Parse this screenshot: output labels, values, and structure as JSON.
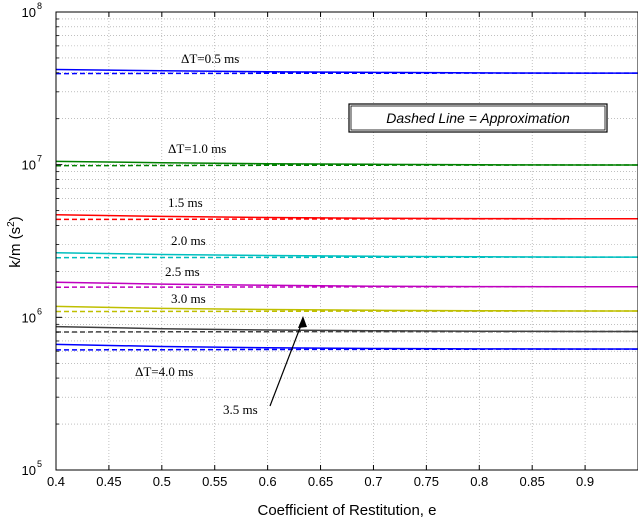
{
  "chart_data": {
    "type": "line",
    "xlabel": "Coefficient of Restitution, e",
    "ylabel": "k/m (s",
    "ylabel_exp": "2",
    "ylabel_close": ")",
    "yscale": "log",
    "xlim": [
      0.4,
      0.95
    ],
    "ylim": [
      100000,
      100000000
    ],
    "grid": true,
    "x_ticks": [
      "0.4",
      "0.45",
      "0.5",
      "0.55",
      "0.6",
      "0.65",
      "0.7",
      "0.75",
      "0.8",
      "0.85",
      "0.9"
    ],
    "x_tick_values": [
      0.4,
      0.45,
      0.5,
      0.55,
      0.6,
      0.65,
      0.7,
      0.75,
      0.8,
      0.85,
      0.9
    ],
    "y_ticks": [
      {
        "value": 100000,
        "base": "10",
        "exp": "5"
      },
      {
        "value": 1000000,
        "base": "10",
        "exp": "6"
      },
      {
        "value": 10000000,
        "base": "10",
        "exp": "7"
      },
      {
        "value": 100000000,
        "base": "10",
        "exp": "8"
      }
    ],
    "series": [
      {
        "label": "ΔT=0.5 ms",
        "color": "#0000ff",
        "x": [
          0.4,
          0.5,
          0.6,
          0.7,
          0.8,
          0.9,
          0.95
        ],
        "solid": [
          42000000,
          41200000,
          40600000,
          40200000,
          39900000,
          39800000,
          39800000
        ],
        "dashed": [
          39500000,
          39600000,
          39700000,
          39700000,
          39800000,
          39800000,
          39800000
        ]
      },
      {
        "label": "ΔT=1.0 ms",
        "color": "#008000",
        "x": [
          0.4,
          0.5,
          0.6,
          0.7,
          0.8,
          0.9,
          0.95
        ],
        "solid": [
          10500000,
          10300000,
          10150000,
          10050000,
          9980000,
          9950000,
          9950000
        ],
        "dashed": [
          9850000,
          9880000,
          9900000,
          9920000,
          9940000,
          9950000,
          9950000
        ]
      },
      {
        "label": "1.5 ms",
        "color": "#ff0000",
        "x": [
          0.4,
          0.5,
          0.6,
          0.7,
          0.8,
          0.9,
          0.95
        ],
        "solid": [
          4700000,
          4580000,
          4510000,
          4460000,
          4430000,
          4420000,
          4420000
        ],
        "dashed": [
          4380000,
          4390000,
          4400000,
          4410000,
          4415000,
          4420000,
          4420000
        ]
      },
      {
        "label": "2.0 ms",
        "color": "#00bfbf",
        "x": [
          0.4,
          0.5,
          0.6,
          0.7,
          0.8,
          0.9,
          0.95
        ],
        "solid": [
          2650000,
          2580000,
          2540000,
          2510000,
          2490000,
          2480000,
          2480000
        ],
        "dashed": [
          2460000,
          2465000,
          2470000,
          2475000,
          2478000,
          2480000,
          2480000
        ]
      },
      {
        "label": "2.5 ms",
        "color": "#bf00bf",
        "x": [
          0.4,
          0.5,
          0.6,
          0.7,
          0.8,
          0.9,
          0.95
        ],
        "solid": [
          1700000,
          1650000,
          1620000,
          1600000,
          1590000,
          1585000,
          1585000
        ],
        "dashed": [
          1575000,
          1578000,
          1580000,
          1582000,
          1584000,
          1585000,
          1585000
        ]
      },
      {
        "label": "3.0 ms",
        "color": "#bfbf00",
        "x": [
          0.4,
          0.5,
          0.6,
          0.7,
          0.8,
          0.9,
          0.95
        ],
        "solid": [
          1180000,
          1145000,
          1125000,
          1112000,
          1105000,
          1100000,
          1100000
        ],
        "dashed": [
          1092000,
          1094000,
          1096000,
          1098000,
          1099000,
          1100000,
          1100000
        ]
      },
      {
        "label": "3.5 ms",
        "color": "#404040",
        "x": [
          0.4,
          0.5,
          0.6,
          0.7,
          0.8,
          0.9,
          0.95
        ],
        "solid": [
          870000,
          842000,
          826000,
          817000,
          811000,
          808000,
          808000
        ],
        "dashed": [
          802000,
          804000,
          805000,
          806000,
          807000,
          808000,
          808000
        ]
      },
      {
        "label": "ΔT=4.0 ms",
        "color": "#0000ff",
        "x": [
          0.4,
          0.5,
          0.6,
          0.7,
          0.8,
          0.9,
          0.95
        ],
        "solid": [
          665000,
          644000,
          632000,
          625000,
          621000,
          620000,
          620000
        ],
        "dashed": [
          612000,
          614000,
          616000,
          617000,
          618000,
          619000,
          619000
        ]
      }
    ],
    "annotations": [
      {
        "text": "ΔT=0.5 ms"
      },
      {
        "text": "ΔT=1.0 ms"
      },
      {
        "text": "1.5 ms"
      },
      {
        "text": "2.0 ms"
      },
      {
        "text": "2.5 ms"
      },
      {
        "text": "3.0 ms"
      },
      {
        "text": "ΔT=4.0 ms"
      },
      {
        "text": "3.5 ms"
      }
    ],
    "legend_box": "Dashed Line = Approximation"
  }
}
